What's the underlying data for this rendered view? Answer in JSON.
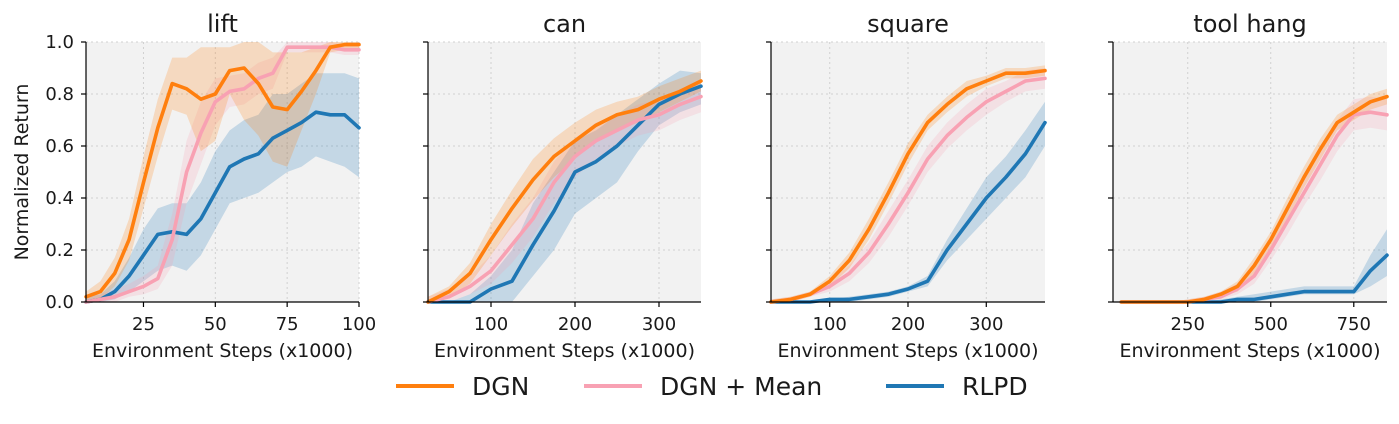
{
  "chart_data": [
    {
      "type": "line",
      "title": "lift",
      "xlabel": "Environment Steps (x1000)",
      "ylabel": "Normalized Return",
      "xlim": [
        5,
        100
      ],
      "ylim": [
        0,
        1
      ],
      "xticks": [
        25,
        50,
        75,
        100
      ],
      "yticks": [
        0.0,
        0.2,
        0.4,
        0.6,
        0.8,
        1.0
      ],
      "ytick_labels": [
        "0.0",
        "0.2",
        "0.4",
        "0.6",
        "0.8",
        "1.0"
      ],
      "show_ytick_labels": true,
      "grid": true,
      "series": [
        {
          "name": "RLPD",
          "x": [
            5,
            10,
            15,
            20,
            25,
            30,
            35,
            40,
            45,
            50,
            55,
            60,
            65,
            70,
            75,
            80,
            85,
            90,
            95,
            100
          ],
          "y": [
            0.0,
            0.01,
            0.04,
            0.1,
            0.18,
            0.26,
            0.27,
            0.26,
            0.32,
            0.42,
            0.52,
            0.55,
            0.57,
            0.63,
            0.66,
            0.69,
            0.73,
            0.72,
            0.72,
            0.67
          ],
          "lower": [
            0.0,
            0.0,
            0.01,
            0.04,
            0.08,
            0.12,
            0.14,
            0.12,
            0.18,
            0.28,
            0.38,
            0.4,
            0.42,
            0.46,
            0.5,
            0.52,
            0.56,
            0.54,
            0.52,
            0.48
          ],
          "upper": [
            0.02,
            0.03,
            0.08,
            0.17,
            0.28,
            0.36,
            0.38,
            0.38,
            0.46,
            0.58,
            0.66,
            0.7,
            0.72,
            0.8,
            0.8,
            0.84,
            0.88,
            0.88,
            0.88,
            0.86
          ]
        },
        {
          "name": "DGN + Mean",
          "x": [
            5,
            10,
            15,
            20,
            25,
            30,
            35,
            40,
            45,
            50,
            55,
            60,
            65,
            70,
            75,
            80,
            85,
            90,
            95,
            100
          ],
          "y": [
            0.0,
            0.01,
            0.02,
            0.04,
            0.06,
            0.09,
            0.24,
            0.5,
            0.65,
            0.77,
            0.81,
            0.82,
            0.86,
            0.88,
            0.98,
            0.98,
            0.98,
            0.98,
            0.97,
            0.97
          ],
          "lower": [
            0.0,
            0.0,
            0.0,
            0.02,
            0.03,
            0.05,
            0.14,
            0.38,
            0.53,
            0.68,
            0.75,
            0.76,
            0.8,
            0.82,
            0.96,
            0.96,
            0.96,
            0.96,
            0.95,
            0.95
          ],
          "upper": [
            0.02,
            0.03,
            0.05,
            0.07,
            0.1,
            0.14,
            0.34,
            0.62,
            0.77,
            0.86,
            0.87,
            0.88,
            0.92,
            0.94,
            1.0,
            1.0,
            1.0,
            1.0,
            0.99,
            0.99
          ]
        },
        {
          "name": "DGN",
          "x": [
            5,
            10,
            15,
            20,
            25,
            30,
            35,
            40,
            45,
            50,
            55,
            60,
            65,
            70,
            75,
            80,
            85,
            90,
            95,
            100
          ],
          "y": [
            0.02,
            0.04,
            0.11,
            0.24,
            0.46,
            0.67,
            0.84,
            0.82,
            0.78,
            0.8,
            0.89,
            0.9,
            0.84,
            0.75,
            0.74,
            0.81,
            0.89,
            0.98,
            0.99,
            0.99
          ],
          "lower": [
            0.0,
            0.01,
            0.06,
            0.16,
            0.36,
            0.56,
            0.74,
            0.72,
            0.58,
            0.62,
            0.8,
            0.7,
            0.64,
            0.54,
            0.52,
            0.66,
            0.8,
            0.96,
            0.97,
            0.97
          ],
          "upper": [
            0.04,
            0.08,
            0.17,
            0.32,
            0.56,
            0.78,
            0.94,
            0.94,
            0.98,
            0.98,
            0.98,
            1.0,
            1.0,
            0.96,
            0.96,
            0.96,
            0.98,
            1.0,
            1.0,
            1.0
          ]
        }
      ]
    },
    {
      "type": "line",
      "title": "can",
      "xlabel": "Environment Steps (x1000)",
      "ylabel": "",
      "xlim": [
        25,
        350
      ],
      "ylim": [
        0,
        1
      ],
      "xticks": [
        100,
        200,
        300
      ],
      "yticks": [
        0.0,
        0.2,
        0.4,
        0.6,
        0.8,
        1.0
      ],
      "ytick_labels": [
        "0.0",
        "0.2",
        "0.4",
        "0.6",
        "0.8",
        "1.0"
      ],
      "show_ytick_labels": false,
      "grid": true,
      "series": [
        {
          "name": "RLPD",
          "x": [
            25,
            50,
            75,
            100,
            125,
            150,
            175,
            200,
            225,
            250,
            275,
            300,
            325,
            350
          ],
          "y": [
            0.0,
            0.0,
            0.0,
            0.05,
            0.08,
            0.22,
            0.35,
            0.5,
            0.54,
            0.6,
            0.68,
            0.76,
            0.8,
            0.83
          ],
          "lower": [
            0.0,
            0.0,
            0.0,
            0.0,
            0.0,
            0.1,
            0.2,
            0.34,
            0.4,
            0.46,
            0.58,
            0.68,
            0.73,
            0.76
          ],
          "upper": [
            0.0,
            0.0,
            0.03,
            0.1,
            0.2,
            0.38,
            0.5,
            0.62,
            0.66,
            0.72,
            0.78,
            0.84,
            0.89,
            0.88
          ]
        },
        {
          "name": "DGN + Mean",
          "x": [
            25,
            50,
            75,
            100,
            125,
            150,
            175,
            200,
            225,
            250,
            275,
            300,
            325,
            350
          ],
          "y": [
            0.0,
            0.02,
            0.06,
            0.12,
            0.22,
            0.32,
            0.46,
            0.56,
            0.62,
            0.66,
            0.7,
            0.72,
            0.76,
            0.79
          ],
          "lower": [
            0.0,
            0.0,
            0.03,
            0.07,
            0.15,
            0.25,
            0.38,
            0.48,
            0.55,
            0.6,
            0.64,
            0.66,
            0.7,
            0.73
          ],
          "upper": [
            0.02,
            0.05,
            0.1,
            0.18,
            0.3,
            0.4,
            0.54,
            0.63,
            0.69,
            0.72,
            0.76,
            0.78,
            0.82,
            0.85
          ]
        },
        {
          "name": "DGN",
          "x": [
            25,
            50,
            75,
            100,
            125,
            150,
            175,
            200,
            225,
            250,
            275,
            300,
            325,
            350
          ],
          "y": [
            0.0,
            0.04,
            0.11,
            0.24,
            0.36,
            0.47,
            0.56,
            0.62,
            0.68,
            0.72,
            0.74,
            0.78,
            0.81,
            0.85
          ],
          "lower": [
            0.0,
            0.02,
            0.07,
            0.18,
            0.29,
            0.39,
            0.48,
            0.55,
            0.62,
            0.66,
            0.69,
            0.73,
            0.77,
            0.81
          ],
          "upper": [
            0.02,
            0.06,
            0.15,
            0.3,
            0.43,
            0.55,
            0.63,
            0.69,
            0.74,
            0.77,
            0.79,
            0.83,
            0.86,
            0.89
          ]
        }
      ]
    },
    {
      "type": "line",
      "title": "square",
      "xlabel": "Environment Steps (x1000)",
      "ylabel": "",
      "xlim": [
        25,
        375
      ],
      "ylim": [
        0,
        1
      ],
      "xticks": [
        100,
        200,
        300
      ],
      "yticks": [
        0.0,
        0.2,
        0.4,
        0.6,
        0.8,
        1.0
      ],
      "ytick_labels": [
        "0.0",
        "0.2",
        "0.4",
        "0.6",
        "0.8",
        "1.0"
      ],
      "show_ytick_labels": false,
      "grid": true,
      "series": [
        {
          "name": "RLPD",
          "x": [
            25,
            50,
            75,
            100,
            125,
            150,
            175,
            200,
            225,
            250,
            275,
            300,
            325,
            350,
            375
          ],
          "y": [
            0.0,
            0.0,
            0.0,
            0.01,
            0.01,
            0.02,
            0.03,
            0.05,
            0.08,
            0.2,
            0.3,
            0.4,
            0.48,
            0.57,
            0.69
          ],
          "lower": [
            0.0,
            0.0,
            0.0,
            0.0,
            0.0,
            0.01,
            0.02,
            0.04,
            0.06,
            0.16,
            0.24,
            0.32,
            0.4,
            0.48,
            0.6
          ],
          "upper": [
            0.0,
            0.0,
            0.0,
            0.01,
            0.02,
            0.03,
            0.04,
            0.06,
            0.1,
            0.24,
            0.36,
            0.48,
            0.56,
            0.66,
            0.77
          ]
        },
        {
          "name": "DGN + Mean",
          "x": [
            25,
            50,
            75,
            100,
            125,
            150,
            175,
            200,
            225,
            250,
            275,
            300,
            325,
            350,
            375
          ],
          "y": [
            0.0,
            0.01,
            0.03,
            0.06,
            0.11,
            0.19,
            0.3,
            0.42,
            0.55,
            0.64,
            0.71,
            0.77,
            0.81,
            0.85,
            0.86
          ],
          "lower": [
            0.0,
            0.0,
            0.02,
            0.04,
            0.08,
            0.15,
            0.25,
            0.37,
            0.5,
            0.59,
            0.66,
            0.72,
            0.77,
            0.81,
            0.82
          ],
          "upper": [
            0.01,
            0.02,
            0.04,
            0.08,
            0.14,
            0.23,
            0.35,
            0.47,
            0.6,
            0.69,
            0.76,
            0.82,
            0.85,
            0.89,
            0.9
          ]
        },
        {
          "name": "DGN",
          "x": [
            25,
            50,
            75,
            100,
            125,
            150,
            175,
            200,
            225,
            250,
            275,
            300,
            325,
            350,
            375
          ],
          "y": [
            0.0,
            0.01,
            0.03,
            0.08,
            0.16,
            0.28,
            0.42,
            0.57,
            0.69,
            0.76,
            0.82,
            0.85,
            0.88,
            0.88,
            0.89
          ],
          "lower": [
            0.0,
            0.0,
            0.02,
            0.06,
            0.13,
            0.24,
            0.38,
            0.53,
            0.66,
            0.73,
            0.79,
            0.83,
            0.86,
            0.86,
            0.87
          ],
          "upper": [
            0.01,
            0.02,
            0.04,
            0.1,
            0.19,
            0.32,
            0.46,
            0.61,
            0.72,
            0.79,
            0.85,
            0.87,
            0.9,
            0.9,
            0.91
          ]
        }
      ]
    },
    {
      "type": "line",
      "title": "tool hang",
      "xlabel": "Environment Steps (x1000)",
      "ylabel": "",
      "xlim": [
        25,
        850
      ],
      "ylim": [
        0,
        1
      ],
      "xticks": [
        250,
        500,
        750
      ],
      "yticks": [
        0.0,
        0.2,
        0.4,
        0.6,
        0.8,
        1.0
      ],
      "ytick_labels": [
        "0.0",
        "0.2",
        "0.4",
        "0.6",
        "0.8",
        "1.0"
      ],
      "show_ytick_labels": false,
      "grid": true,
      "series": [
        {
          "name": "RLPD",
          "x": [
            50,
            100,
            150,
            200,
            250,
            300,
            350,
            400,
            450,
            500,
            550,
            600,
            650,
            700,
            750,
            800,
            850
          ],
          "y": [
            0.0,
            0.0,
            0.0,
            0.0,
            0.0,
            0.0,
            0.0,
            0.01,
            0.01,
            0.02,
            0.03,
            0.04,
            0.04,
            0.04,
            0.04,
            0.12,
            0.18
          ],
          "lower": [
            0.0,
            0.0,
            0.0,
            0.0,
            0.0,
            0.0,
            0.0,
            0.0,
            0.0,
            0.01,
            0.02,
            0.03,
            0.03,
            0.03,
            0.03,
            0.06,
            0.1
          ],
          "upper": [
            0.0,
            0.0,
            0.0,
            0.0,
            0.0,
            0.0,
            0.01,
            0.02,
            0.03,
            0.04,
            0.05,
            0.06,
            0.06,
            0.06,
            0.06,
            0.18,
            0.28
          ]
        },
        {
          "name": "DGN + Mean",
          "x": [
            50,
            100,
            150,
            200,
            250,
            300,
            350,
            400,
            450,
            500,
            550,
            600,
            650,
            700,
            750,
            800,
            850
          ],
          "y": [
            0.0,
            0.0,
            0.0,
            0.0,
            0.0,
            0.01,
            0.02,
            0.05,
            0.1,
            0.2,
            0.31,
            0.42,
            0.53,
            0.64,
            0.72,
            0.73,
            0.72
          ],
          "lower": [
            0.0,
            0.0,
            0.0,
            0.0,
            0.0,
            0.0,
            0.01,
            0.03,
            0.07,
            0.16,
            0.26,
            0.37,
            0.47,
            0.58,
            0.66,
            0.67,
            0.66
          ],
          "upper": [
            0.0,
            0.0,
            0.0,
            0.0,
            0.01,
            0.02,
            0.04,
            0.07,
            0.14,
            0.24,
            0.36,
            0.47,
            0.59,
            0.7,
            0.78,
            0.79,
            0.78
          ]
        },
        {
          "name": "DGN",
          "x": [
            50,
            100,
            150,
            200,
            250,
            300,
            350,
            400,
            450,
            500,
            550,
            600,
            650,
            700,
            750,
            800,
            850
          ],
          "y": [
            0.0,
            0.0,
            0.0,
            0.0,
            0.0,
            0.01,
            0.03,
            0.06,
            0.14,
            0.24,
            0.36,
            0.48,
            0.59,
            0.69,
            0.73,
            0.77,
            0.79
          ],
          "lower": [
            0.0,
            0.0,
            0.0,
            0.0,
            0.0,
            0.0,
            0.02,
            0.04,
            0.11,
            0.21,
            0.32,
            0.44,
            0.55,
            0.66,
            0.7,
            0.74,
            0.76
          ],
          "upper": [
            0.0,
            0.0,
            0.0,
            0.0,
            0.01,
            0.02,
            0.04,
            0.08,
            0.17,
            0.27,
            0.4,
            0.52,
            0.63,
            0.72,
            0.76,
            0.8,
            0.82
          ]
        }
      ]
    }
  ],
  "legend": {
    "placement": "bottom-center",
    "entries": [
      {
        "name": "DGN",
        "color": "#ff7f0e"
      },
      {
        "name": "DGN + Mean",
        "color": "#f8a1b3"
      },
      {
        "name": "RLPD",
        "color": "#1f77b4"
      }
    ]
  },
  "colors": {
    "DGN": "#ff7f0e",
    "DGN + Mean": "#f8a1b3",
    "RLPD": "#1f77b4",
    "plot_background": "#f2f2f2",
    "grid": "#d0d0d0"
  }
}
